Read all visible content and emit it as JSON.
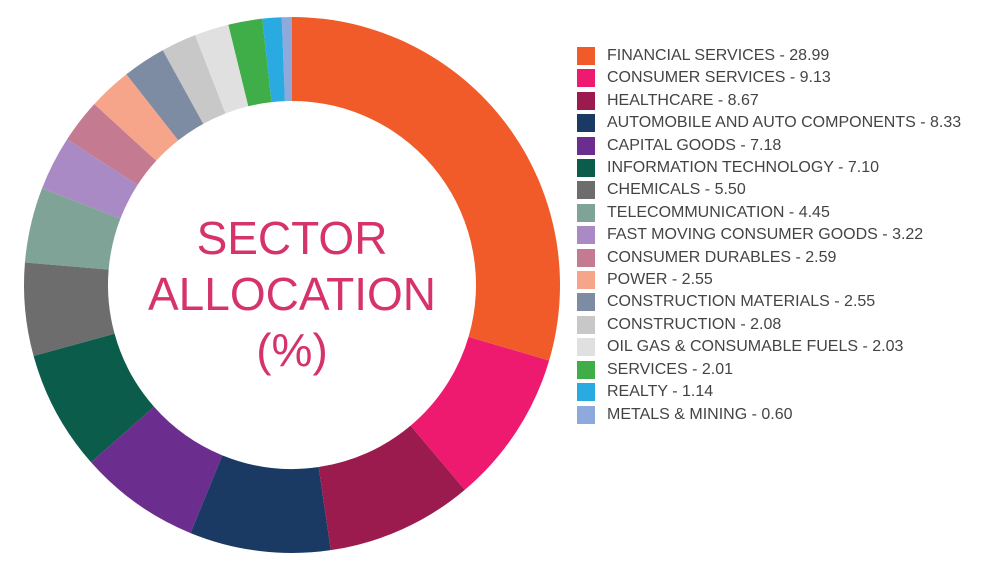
{
  "chart_data": {
    "type": "donut",
    "title_lines": [
      "SECTOR",
      "ALLOCATION",
      "(%)"
    ],
    "categories": [
      "FINANCIAL SERVICES - 28.99",
      "CONSUMER SERVICES - 9.13",
      "HEALTHCARE - 8.67",
      "AUTOMOBILE AND AUTO COMPONENTS - 8.33",
      "CAPITAL GOODS - 7.18",
      "INFORMATION TECHNOLOGY - 7.10",
      "CHEMICALS - 5.50",
      "TELECOMMUNICATION - 4.45",
      "FAST MOVING CONSUMER GOODS - 3.22",
      "CONSUMER DURABLES - 2.59",
      "POWER - 2.55",
      "CONSTRUCTION MATERIALS - 2.55",
      "CONSTRUCTION - 2.08",
      "OIL GAS & CONSUMABLE FUELS - 2.03",
      "SERVICES - 2.01",
      "REALTY - 1.14",
      "METALS & MINING - 0.60"
    ],
    "values": [
      28.99,
      9.13,
      8.67,
      8.33,
      7.18,
      7.1,
      5.5,
      4.45,
      3.22,
      2.59,
      2.55,
      2.55,
      2.08,
      2.03,
      2.01,
      1.14,
      0.6
    ],
    "colors": [
      "#f15a29",
      "#ed1a6f",
      "#9b1b4e",
      "#1b3a63",
      "#6b2d8e",
      "#0b5c4a",
      "#6d6d6d",
      "#7fa396",
      "#a98ac4",
      "#c47b92",
      "#f6a58a",
      "#7d8ba3",
      "#c8c8c8",
      "#e0e0e0",
      "#3fae49",
      "#29abe2",
      "#8ea9db"
    ],
    "legend": "right"
  }
}
